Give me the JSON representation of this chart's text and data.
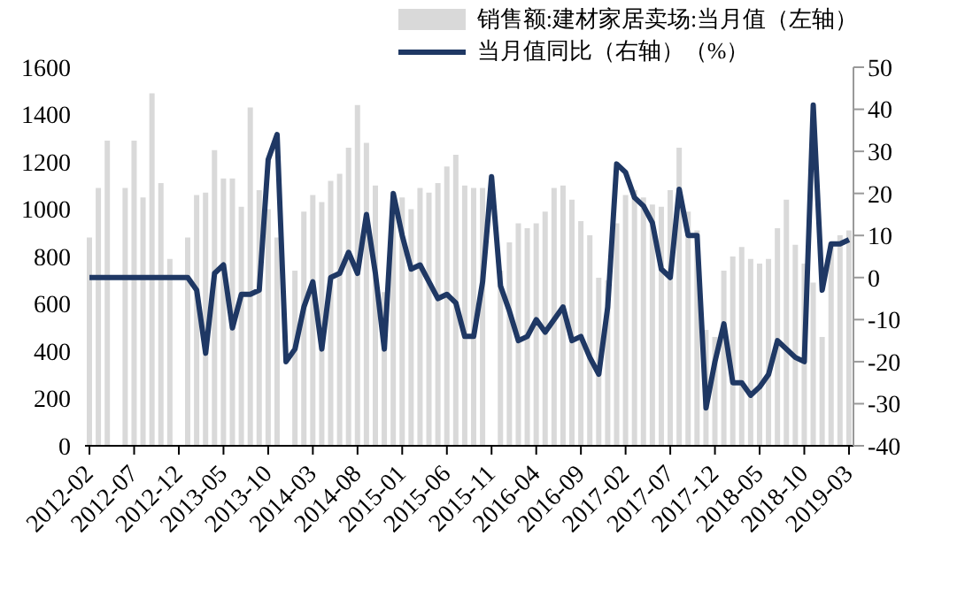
{
  "chart_data": {
    "type": "bar",
    "categories": [
      "2012-02",
      null,
      null,
      null,
      null,
      "2012-07",
      null,
      null,
      null,
      null,
      "2012-12",
      null,
      null,
      null,
      null,
      "2013-05",
      null,
      null,
      null,
      null,
      "2013-10",
      null,
      null,
      null,
      null,
      "2014-03",
      null,
      null,
      null,
      null,
      "2014-08",
      null,
      null,
      null,
      null,
      "2015-01",
      null,
      null,
      null,
      null,
      "2015-06",
      null,
      null,
      null,
      null,
      "2015-11",
      null,
      null,
      null,
      null,
      "2016-04",
      null,
      null,
      null,
      null,
      "2016-09",
      null,
      null,
      null,
      null,
      "2017-02",
      null,
      null,
      null,
      null,
      "2017-07",
      null,
      null,
      null,
      null,
      "2017-12",
      null,
      null,
      null,
      null,
      "2018-05",
      null,
      null,
      null,
      null,
      "2018-10",
      null,
      null,
      null,
      null,
      "2019-03"
    ],
    "series": [
      {
        "type": "bar",
        "name": "销售额:建材家居卖场:当月值（左轴）",
        "color": "#d9d9d9",
        "values": [
          880,
          1090,
          1290,
          null,
          1090,
          1290,
          1050,
          1490,
          1110,
          790,
          null,
          880,
          1060,
          1070,
          1250,
          1130,
          1130,
          1010,
          1430,
          1080,
          1000,
          880,
          null,
          740,
          990,
          1060,
          1030,
          1120,
          1150,
          1260,
          1440,
          1280,
          1100,
          650,
          1000,
          1050,
          1000,
          1090,
          1070,
          1110,
          1180,
          1230,
          1100,
          1090,
          1090,
          null,
          740,
          860,
          940,
          920,
          940,
          990,
          1090,
          1100,
          1040,
          950,
          890,
          710,
          700,
          940,
          1060,
          1080,
          1050,
          1020,
          1010,
          1080,
          1260,
          990,
          910,
          490,
          460,
          740,
          800,
          840,
          790,
          770,
          790,
          920,
          1040,
          850,
          770,
          690,
          460,
          860,
          890,
          910
        ]
      },
      {
        "type": "line",
        "axis": "y2",
        "name": "当月值同比（右轴）（%）",
        "color": "#1f3864",
        "values": [
          0,
          0,
          0,
          0,
          0,
          0,
          0,
          0,
          0,
          0,
          0,
          0,
          -3,
          -18,
          1,
          3,
          -12,
          -4,
          -4,
          -3,
          28,
          34,
          -20,
          -17,
          -7,
          -1,
          -17,
          0,
          1,
          6,
          1,
          15,
          1,
          -17,
          20,
          10,
          2,
          3,
          -1,
          -5,
          -4,
          -6,
          -14,
          -14,
          -1,
          24,
          -2,
          -8,
          -15,
          -14,
          -10,
          -13,
          -10,
          -7,
          -15,
          -14,
          -19,
          -23,
          -7,
          27,
          25,
          19,
          17,
          13,
          2,
          0,
          21,
          10,
          10,
          -31,
          -20,
          -11,
          -25,
          -25,
          -28,
          -26,
          -23,
          -15,
          -17,
          -19,
          -20,
          41,
          -3,
          8,
          8,
          9
        ]
      }
    ],
    "ylim": [
      0,
      1600
    ],
    "yticks": [
      0,
      200,
      400,
      600,
      800,
      1000,
      1200,
      1400,
      1600
    ],
    "y2lim": [
      -40,
      50
    ],
    "y2ticks": [
      -40,
      -30,
      -20,
      -10,
      0,
      10,
      20,
      30,
      40,
      50
    ],
    "legend": "top",
    "grid": false,
    "marker": "none",
    "line_style": "solid"
  }
}
